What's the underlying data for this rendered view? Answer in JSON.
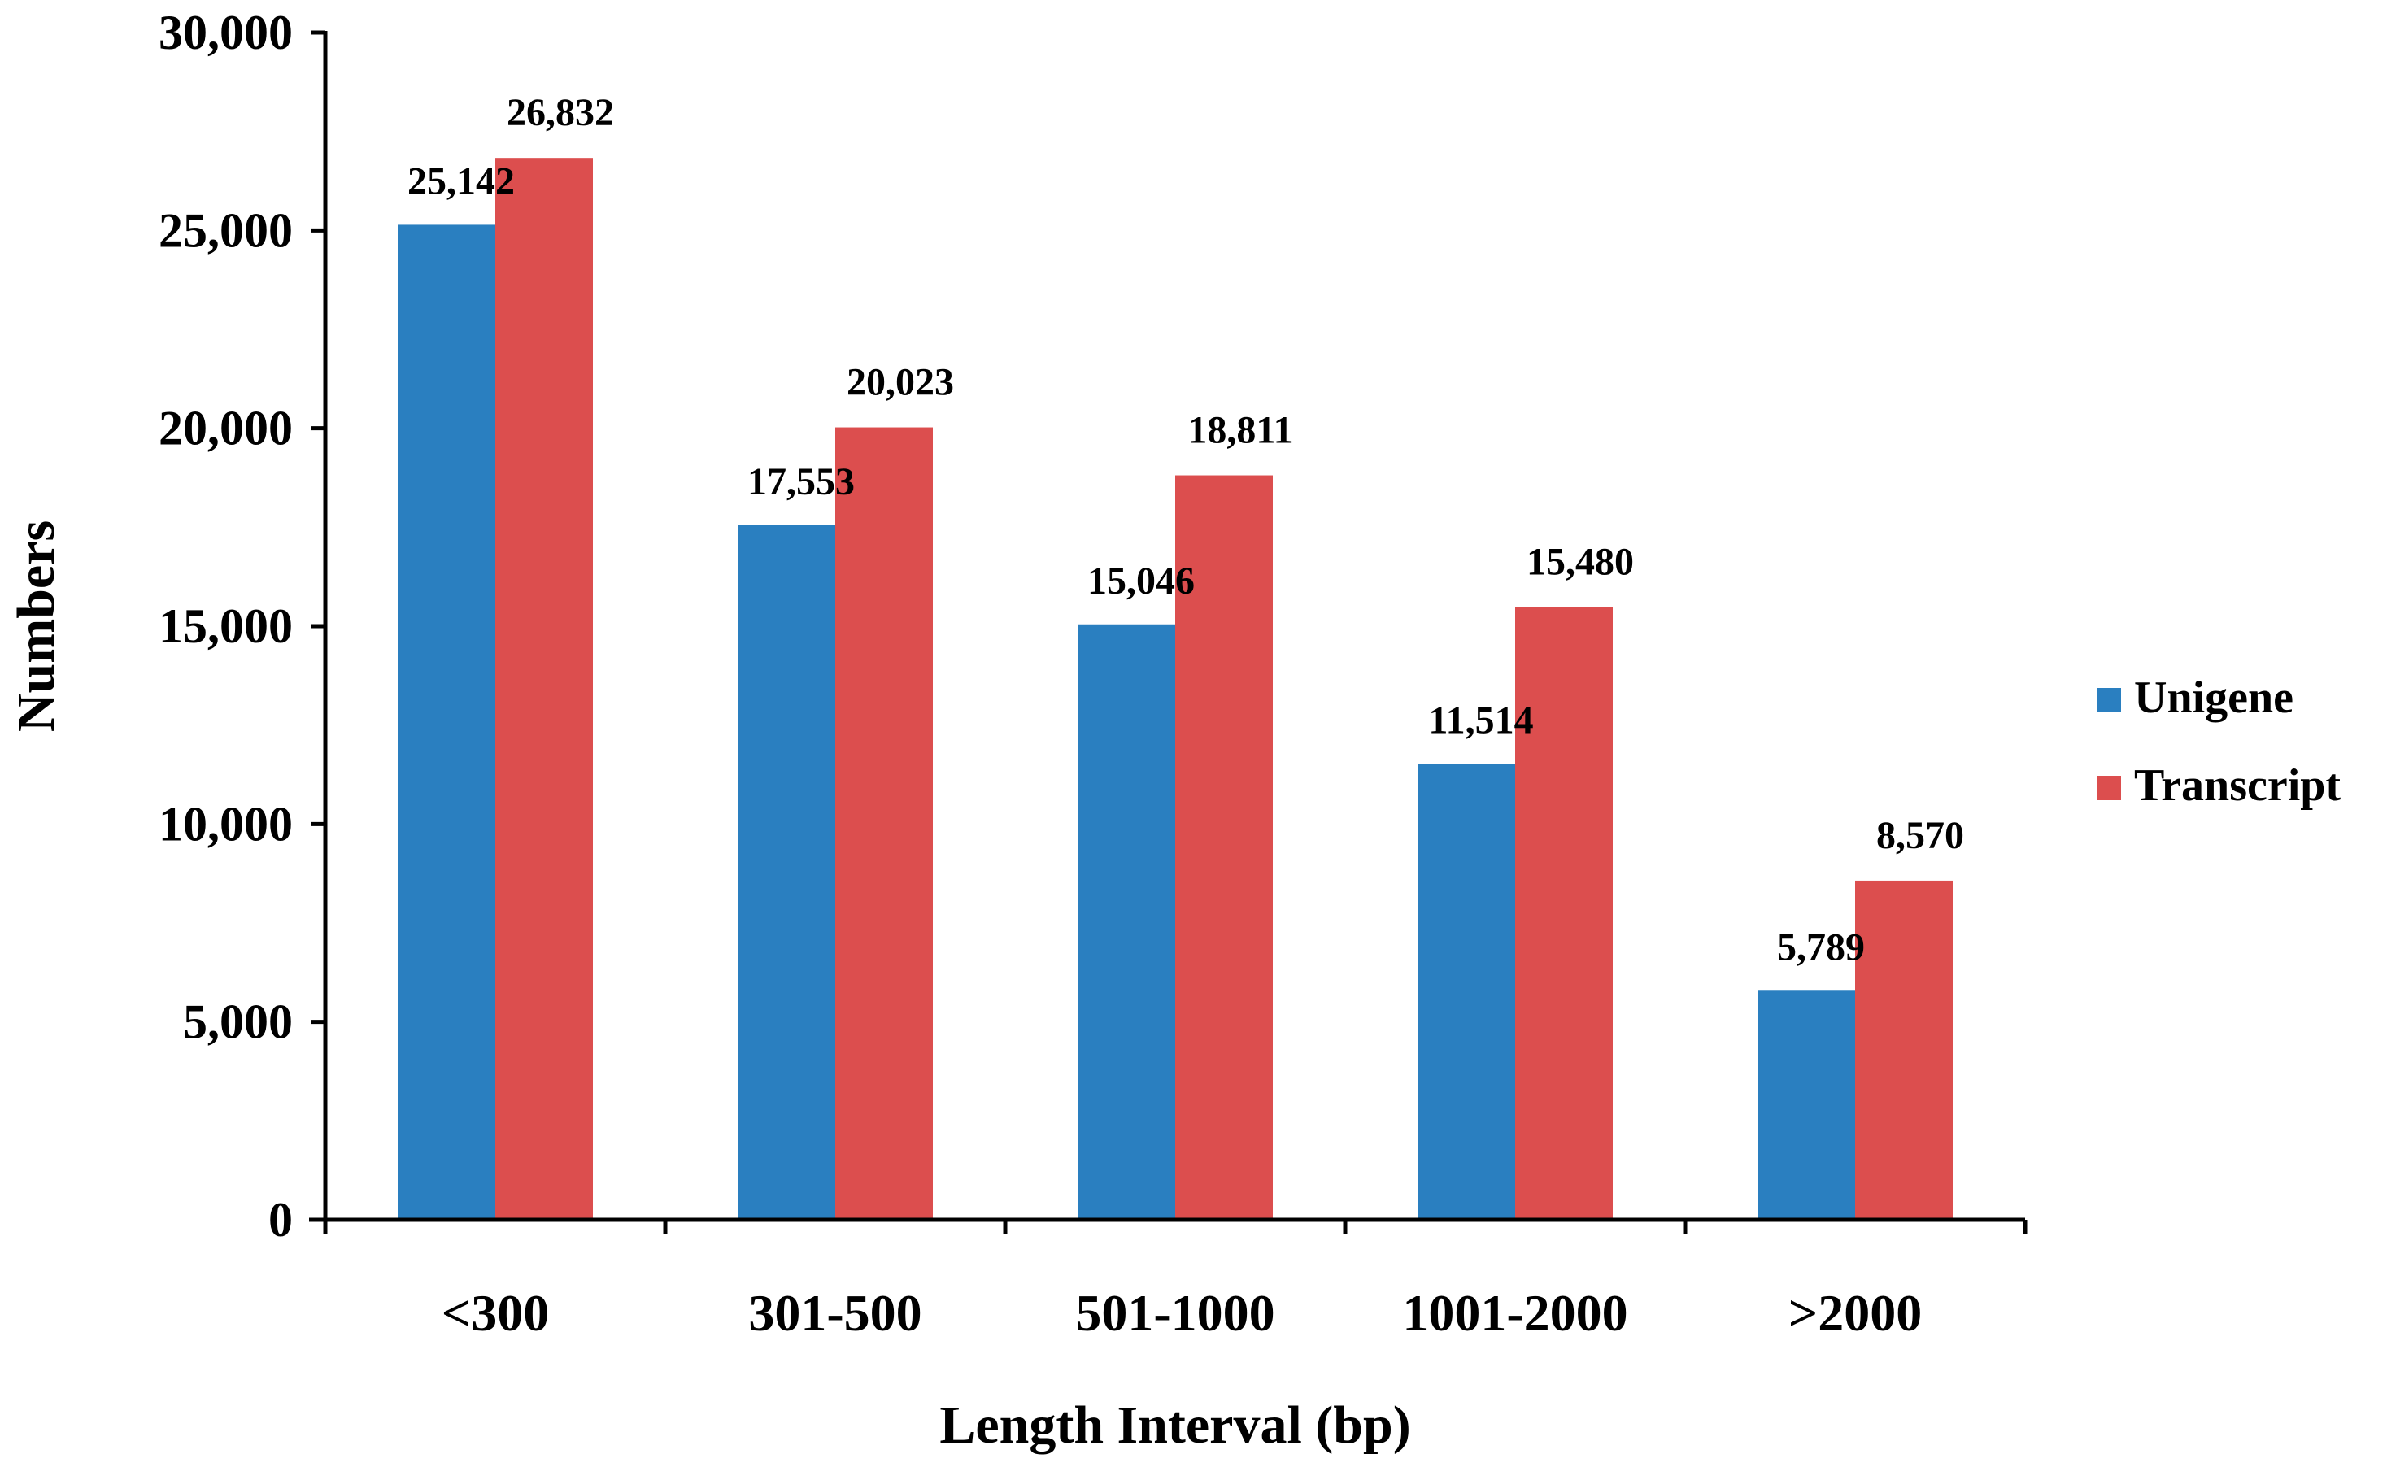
{
  "chart_data": {
    "type": "bar",
    "title": "",
    "xlabel": "Length Interval (bp)",
    "ylabel": "Numbers",
    "ylim": [
      0,
      30000
    ],
    "yticks": [
      0,
      5000,
      10000,
      15000,
      20000,
      25000,
      30000
    ],
    "ytick_labels": [
      "0",
      "5,000",
      "10,000",
      "15,000",
      "20,000",
      "25,000",
      "30,000"
    ],
    "categories": [
      "<300",
      "301-500",
      "501-1000",
      "1001-2000",
      ">2000"
    ],
    "series": [
      {
        "name": "Unigene",
        "color": "#2a7fc0",
        "values": [
          25142,
          17553,
          15046,
          11514,
          5789
        ],
        "labels": [
          "25,142",
          "17,553",
          "15,046",
          "11,514",
          "5,789"
        ]
      },
      {
        "name": "Transcript",
        "color": "#dc4e4e",
        "values": [
          26832,
          20023,
          18811,
          15480,
          8570
        ],
        "labels": [
          "26,832",
          "20,023",
          "18,811",
          "15,480",
          "8,570"
        ]
      }
    ],
    "legend_position": "right",
    "grid": false
  }
}
